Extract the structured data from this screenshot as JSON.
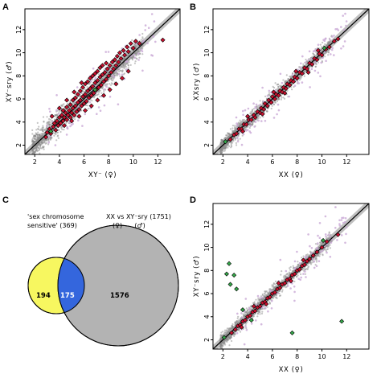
{
  "panels": {
    "a": "A",
    "b": "B",
    "c": "C",
    "d": "D"
  },
  "colors": {
    "points": "#b8b8b8",
    "outlier_points": "#c9a9d6",
    "highlight_fill": "#c8102e",
    "highlight_outline": "#000000",
    "green_points": "#35a84a",
    "band": "#8c8c8c",
    "venn_left": "#f7f760",
    "venn_overlap": "#3466dd",
    "venn_right": "#b3b3b3"
  },
  "chart_data": [
    {
      "id": "a",
      "type": "scatter",
      "xlabel": "XY⁻ (♀)",
      "ylabel": "XY⁻sry (♂)",
      "xlim": [
        1.2,
        13.8
      ],
      "ylim": [
        1.2,
        13.8
      ],
      "xticks": [
        2,
        4,
        6,
        8,
        10,
        12
      ],
      "yticks": [
        2,
        4,
        6,
        8,
        10,
        12
      ],
      "grid": false,
      "diagonal": true,
      "highlight_points": [
        [
          2.9,
          2.7
        ],
        [
          3.0,
          3.1
        ],
        [
          3.2,
          3.4
        ],
        [
          3.3,
          3.0
        ],
        [
          3.5,
          3.6
        ],
        [
          3.6,
          3.9
        ],
        [
          3.7,
          3.3
        ],
        [
          3.8,
          4.1
        ],
        [
          3.9,
          3.7
        ],
        [
          4.0,
          4.4
        ],
        [
          4.1,
          3.9
        ],
        [
          4.2,
          4.6
        ],
        [
          4.3,
          4.1
        ],
        [
          4.3,
          5.0
        ],
        [
          4.4,
          4.4
        ],
        [
          4.5,
          4.8
        ],
        [
          4.6,
          4.2
        ],
        [
          4.6,
          5.3
        ],
        [
          4.7,
          4.6
        ],
        [
          4.8,
          5.0
        ],
        [
          4.9,
          4.4
        ],
        [
          4.9,
          5.5
        ],
        [
          5.0,
          4.8
        ],
        [
          5.1,
          5.2
        ],
        [
          5.1,
          5.9
        ],
        [
          5.2,
          4.6
        ],
        [
          5.3,
          5.4
        ],
        [
          5.3,
          6.1
        ],
        [
          5.4,
          4.9
        ],
        [
          5.5,
          5.7
        ],
        [
          5.5,
          6.4
        ],
        [
          5.6,
          5.1
        ],
        [
          5.7,
          5.9
        ],
        [
          5.7,
          6.7
        ],
        [
          5.8,
          5.4
        ],
        [
          5.9,
          6.2
        ],
        [
          5.9,
          7.0
        ],
        [
          6.0,
          5.6
        ],
        [
          6.1,
          6.4
        ],
        [
          6.1,
          7.3
        ],
        [
          6.2,
          5.8
        ],
        [
          6.3,
          6.7
        ],
        [
          6.3,
          7.5
        ],
        [
          6.4,
          6.1
        ],
        [
          6.5,
          6.9
        ],
        [
          6.5,
          7.8
        ],
        [
          6.6,
          6.3
        ],
        [
          6.7,
          7.1
        ],
        [
          6.7,
          8.0
        ],
        [
          6.8,
          6.5
        ],
        [
          6.9,
          7.4
        ],
        [
          6.9,
          8.2
        ],
        [
          7.0,
          6.8
        ],
        [
          7.1,
          7.6
        ],
        [
          7.1,
          8.4
        ],
        [
          7.2,
          7.0
        ],
        [
          7.3,
          7.9
        ],
        [
          7.3,
          8.7
        ],
        [
          7.4,
          7.2
        ],
        [
          7.5,
          8.1
        ],
        [
          7.5,
          8.9
        ],
        [
          7.6,
          7.5
        ],
        [
          7.7,
          8.3
        ],
        [
          7.8,
          9.1
        ],
        [
          7.8,
          7.7
        ],
        [
          7.9,
          8.6
        ],
        [
          8.0,
          8.0
        ],
        [
          8.1,
          8.9
        ],
        [
          8.2,
          8.3
        ],
        [
          8.3,
          9.2
        ],
        [
          8.4,
          8.6
        ],
        [
          8.5,
          9.4
        ],
        [
          8.6,
          8.9
        ],
        [
          8.7,
          9.7
        ],
        [
          8.8,
          9.2
        ],
        [
          8.9,
          10.0
        ],
        [
          9.0,
          9.5
        ],
        [
          9.2,
          10.2
        ],
        [
          9.3,
          9.8
        ],
        [
          9.5,
          10.5
        ],
        [
          9.6,
          10.1
        ],
        [
          9.8,
          10.8
        ],
        [
          10.0,
          10.4
        ],
        [
          10.2,
          11.0
        ],
        [
          10.5,
          10.8
        ],
        [
          12.4,
          11.1
        ],
        [
          4.4,
          3.7
        ],
        [
          5.0,
          4.1
        ],
        [
          5.6,
          4.5
        ],
        [
          6.1,
          5.0
        ],
        [
          6.6,
          5.4
        ],
        [
          7.1,
          5.9
        ],
        [
          7.6,
          6.3
        ],
        [
          8.1,
          6.8
        ],
        [
          8.6,
          7.3
        ],
        [
          9.1,
          7.8
        ],
        [
          9.6,
          8.4
        ],
        [
          3.4,
          4.5
        ],
        [
          4.0,
          5.2
        ],
        [
          4.6,
          5.9
        ],
        [
          5.2,
          6.6
        ],
        [
          5.8,
          7.4
        ]
      ],
      "green_points": [
        [
          3.3,
          3.2
        ],
        [
          6.9,
          6.8
        ]
      ],
      "note": "Dense grey background cloud of all genes along the diagonal"
    },
    {
      "id": "b",
      "type": "scatter",
      "xlabel": "XX (♀)",
      "ylabel": "XXsry (♂)",
      "xlim": [
        1.2,
        13.8
      ],
      "ylim": [
        1.2,
        13.8
      ],
      "xticks": [
        2,
        4,
        6,
        8,
        10,
        12
      ],
      "yticks": [
        2,
        4,
        6,
        8,
        10,
        12
      ],
      "grid": false,
      "diagonal": true,
      "highlight_points": [
        [
          2.6,
          2.5
        ],
        [
          2.9,
          2.9
        ],
        [
          3.1,
          3.0
        ],
        [
          3.3,
          3.4
        ],
        [
          3.5,
          3.4
        ],
        [
          3.7,
          3.8
        ],
        [
          3.9,
          3.8
        ],
        [
          4.1,
          4.2
        ],
        [
          4.3,
          4.2
        ],
        [
          4.5,
          4.6
        ],
        [
          4.6,
          4.4
        ],
        [
          4.8,
          4.9
        ],
        [
          5.0,
          4.8
        ],
        [
          5.1,
          5.2
        ],
        [
          5.3,
          5.1
        ],
        [
          5.4,
          5.6
        ],
        [
          5.6,
          5.4
        ],
        [
          5.7,
          5.9
        ],
        [
          5.9,
          5.7
        ],
        [
          6.0,
          6.2
        ],
        [
          6.2,
          6.0
        ],
        [
          6.3,
          6.4
        ],
        [
          6.5,
          6.3
        ],
        [
          6.6,
          6.7
        ],
        [
          6.8,
          6.6
        ],
        [
          6.9,
          7.0
        ],
        [
          7.1,
          6.9
        ],
        [
          7.2,
          7.3
        ],
        [
          7.4,
          7.2
        ],
        [
          7.5,
          7.6
        ],
        [
          7.7,
          7.5
        ],
        [
          7.8,
          7.9
        ],
        [
          8.0,
          7.8
        ],
        [
          8.2,
          8.3
        ],
        [
          8.4,
          8.2
        ],
        [
          8.6,
          8.7
        ],
        [
          8.8,
          8.6
        ],
        [
          9.0,
          9.1
        ],
        [
          9.2,
          9.0
        ],
        [
          9.4,
          9.5
        ],
        [
          9.6,
          9.4
        ],
        [
          9.8,
          9.9
        ],
        [
          10.0,
          9.8
        ],
        [
          10.3,
          10.3
        ],
        [
          10.6,
          10.5
        ],
        [
          11.0,
          11.0
        ],
        [
          11.3,
          11.2
        ],
        [
          4.0,
          4.5
        ],
        [
          5.2,
          4.7
        ],
        [
          6.1,
          6.6
        ],
        [
          7.0,
          6.5
        ],
        [
          7.9,
          8.4
        ],
        [
          8.9,
          8.3
        ],
        [
          9.7,
          10.2
        ],
        [
          3.6,
          3.2
        ]
      ],
      "green_points": [
        [
          2.2,
          2.3
        ],
        [
          10.2,
          10.4
        ]
      ],
      "note": "Dense grey background cloud of all genes along the diagonal"
    },
    {
      "id": "c",
      "type": "venn",
      "sets": [
        {
          "label_lines": [
            "'sex chromosome",
            "sensitive' (369)"
          ],
          "size": 369
        },
        {
          "label_lines": [
            "XX vs XY⁻sry (1751)",
            "(♀)      (♂)"
          ],
          "size": 1751
        }
      ],
      "regions": {
        "left_only": 194,
        "overlap": 175,
        "right_only": 1576
      }
    },
    {
      "id": "d",
      "type": "scatter",
      "xlabel": "XX (♀)",
      "ylabel": "XY⁻sry (♂)",
      "xlim": [
        1.2,
        13.8
      ],
      "ylim": [
        1.2,
        13.8
      ],
      "xticks": [
        2,
        4,
        6,
        8,
        10,
        12
      ],
      "yticks": [
        2,
        4,
        6,
        8,
        10,
        12
      ],
      "grid": false,
      "diagonal": true,
      "highlight_points": [
        [
          2.7,
          2.6
        ],
        [
          3.0,
          2.9
        ],
        [
          3.2,
          3.2
        ],
        [
          3.4,
          3.3
        ],
        [
          3.6,
          3.6
        ],
        [
          3.8,
          3.7
        ],
        [
          4.0,
          4.0
        ],
        [
          4.2,
          4.1
        ],
        [
          4.4,
          4.4
        ],
        [
          4.6,
          4.5
        ],
        [
          4.8,
          4.8
        ],
        [
          5.0,
          4.9
        ],
        [
          5.2,
          5.2
        ],
        [
          5.4,
          5.3
        ],
        [
          5.6,
          5.6
        ],
        [
          5.8,
          5.7
        ],
        [
          6.0,
          6.0
        ],
        [
          6.2,
          6.1
        ],
        [
          6.4,
          6.4
        ],
        [
          6.6,
          6.5
        ],
        [
          6.8,
          6.8
        ],
        [
          7.0,
          6.9
        ],
        [
          7.2,
          7.2
        ],
        [
          7.4,
          7.3
        ],
        [
          7.6,
          7.6
        ],
        [
          7.8,
          7.7
        ],
        [
          8.0,
          8.0
        ],
        [
          8.2,
          8.1
        ],
        [
          8.4,
          8.4
        ],
        [
          8.6,
          8.5
        ],
        [
          8.8,
          8.8
        ],
        [
          9.0,
          9.0
        ],
        [
          9.3,
          9.3
        ],
        [
          9.6,
          9.6
        ],
        [
          10.0,
          10.0
        ],
        [
          10.4,
          10.5
        ],
        [
          11.3,
          11.1
        ],
        [
          4.5,
          4.9
        ],
        [
          5.5,
          5.1
        ],
        [
          6.5,
          6.9
        ],
        [
          7.5,
          7.1
        ],
        [
          8.5,
          8.9
        ],
        [
          3.5,
          3.1
        ]
      ],
      "green_points": [
        [
          2.3,
          7.7
        ],
        [
          2.5,
          8.6
        ],
        [
          2.6,
          6.8
        ],
        [
          2.9,
          7.6
        ],
        [
          3.1,
          6.4
        ],
        [
          3.6,
          4.6
        ],
        [
          4.3,
          3.7
        ],
        [
          7.6,
          2.6
        ],
        [
          11.6,
          3.6
        ],
        [
          2.1,
          2.2
        ],
        [
          10.1,
          10.6
        ]
      ],
      "note": "Dense grey background cloud of all genes along the diagonal"
    }
  ]
}
